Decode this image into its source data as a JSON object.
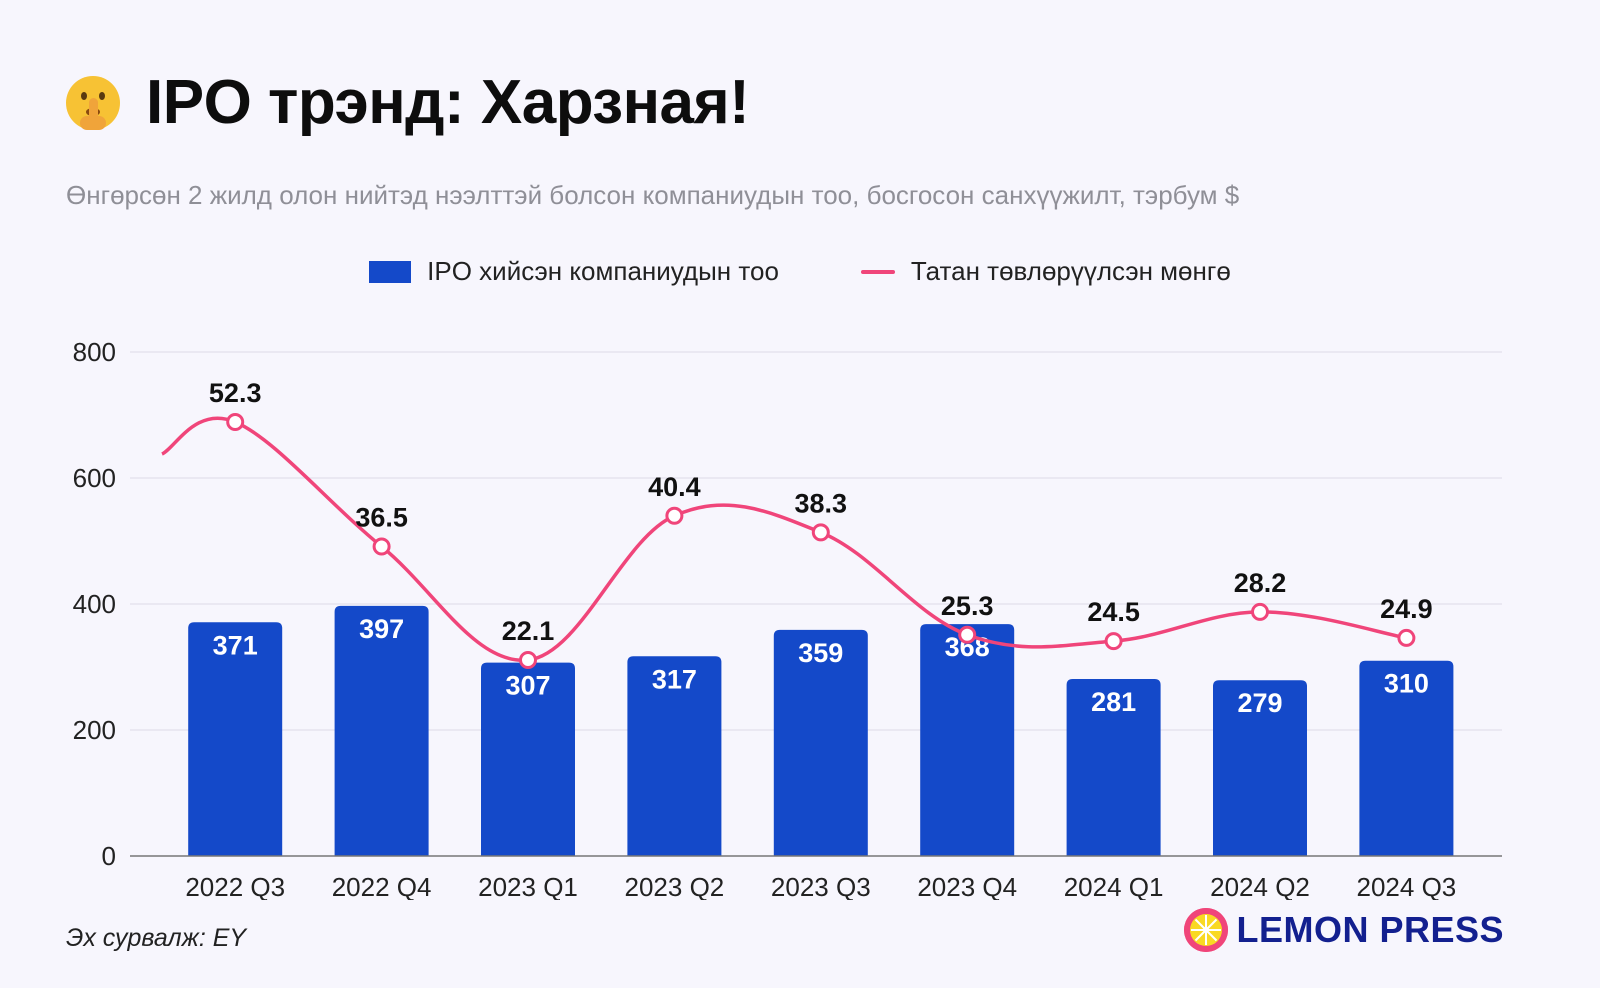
{
  "title": "IPO трэнд: Харзная!",
  "subtitle": "Өнгөрсөн 2 жилд олон нийтэд нээлттэй болсон компаниудын тоо, босгосон санхүүжилт, тэрбум $",
  "legend": {
    "bars": "IPO хийсэн компаниудын тоо",
    "line": "Татан төвлөрүүлсэн мөнгө"
  },
  "icons": {
    "title_emoji": "shushing-face-icon",
    "brand_mark": "lemon-slice-icon"
  },
  "source": "Эх сурвалж: EY",
  "brand": "LEMON PRESS",
  "colors": {
    "background": "#f7f6fd",
    "bars": "#1449c9",
    "line": "#f0457a",
    "brand": "#13208f"
  },
  "chart_data": {
    "type": "bar",
    "categories": [
      "2022 Q3",
      "2022 Q4",
      "2023 Q1",
      "2023 Q2",
      "2023 Q3",
      "2023 Q4",
      "2024 Q1",
      "2024 Q2",
      "2024 Q3"
    ],
    "series": [
      {
        "name": "IPO хийсэн компаниудын тоо",
        "type": "bar",
        "values": [
          371,
          397,
          307,
          317,
          359,
          368,
          281,
          279,
          310
        ]
      },
      {
        "name": "Татан төвлөрүүлсэн мөнгө",
        "type": "line",
        "values": [
          52.3,
          36.5,
          22.1,
          40.4,
          38.3,
          25.3,
          24.5,
          28.2,
          24.9
        ]
      }
    ],
    "yticks": [
      0,
      200,
      400,
      600,
      800
    ],
    "ylim": [
      0,
      800
    ],
    "grid": true,
    "legend_position": "top-center"
  }
}
